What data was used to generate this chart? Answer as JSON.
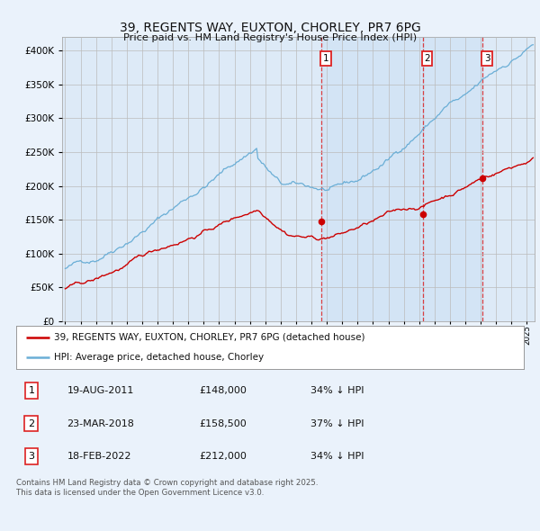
{
  "title": "39, REGENTS WAY, EUXTON, CHORLEY, PR7 6PG",
  "subtitle": "Price paid vs. HM Land Registry's House Price Index (HPI)",
  "background_color": "#eaf2fb",
  "plot_bg_color": "#ddeaf7",
  "grid_color": "#bbbbbb",
  "red_line_color": "#cc0000",
  "blue_line_color": "#6aaed6",
  "purchase_dates_float": [
    2011.63,
    2018.22,
    2022.12
  ],
  "purchase_prices": [
    148000,
    158500,
    212000
  ],
  "purchase_labels": [
    "1",
    "2",
    "3"
  ],
  "vline_color": "#dd2222",
  "legend_entries": [
    "39, REGENTS WAY, EUXTON, CHORLEY, PR7 6PG (detached house)",
    "HPI: Average price, detached house, Chorley"
  ],
  "table_rows": [
    [
      "1",
      "19-AUG-2011",
      "£148,000",
      "34% ↓ HPI"
    ],
    [
      "2",
      "23-MAR-2018",
      "£158,500",
      "37% ↓ HPI"
    ],
    [
      "3",
      "18-FEB-2022",
      "£212,000",
      "34% ↓ HPI"
    ]
  ],
  "footnote": "Contains HM Land Registry data © Crown copyright and database right 2025.\nThis data is licensed under the Open Government Licence v3.0.",
  "ylim": [
    0,
    420000
  ],
  "xlim": [
    1994.8,
    2025.5
  ],
  "yticks": [
    0,
    50000,
    100000,
    150000,
    200000,
    250000,
    300000,
    350000,
    400000
  ]
}
